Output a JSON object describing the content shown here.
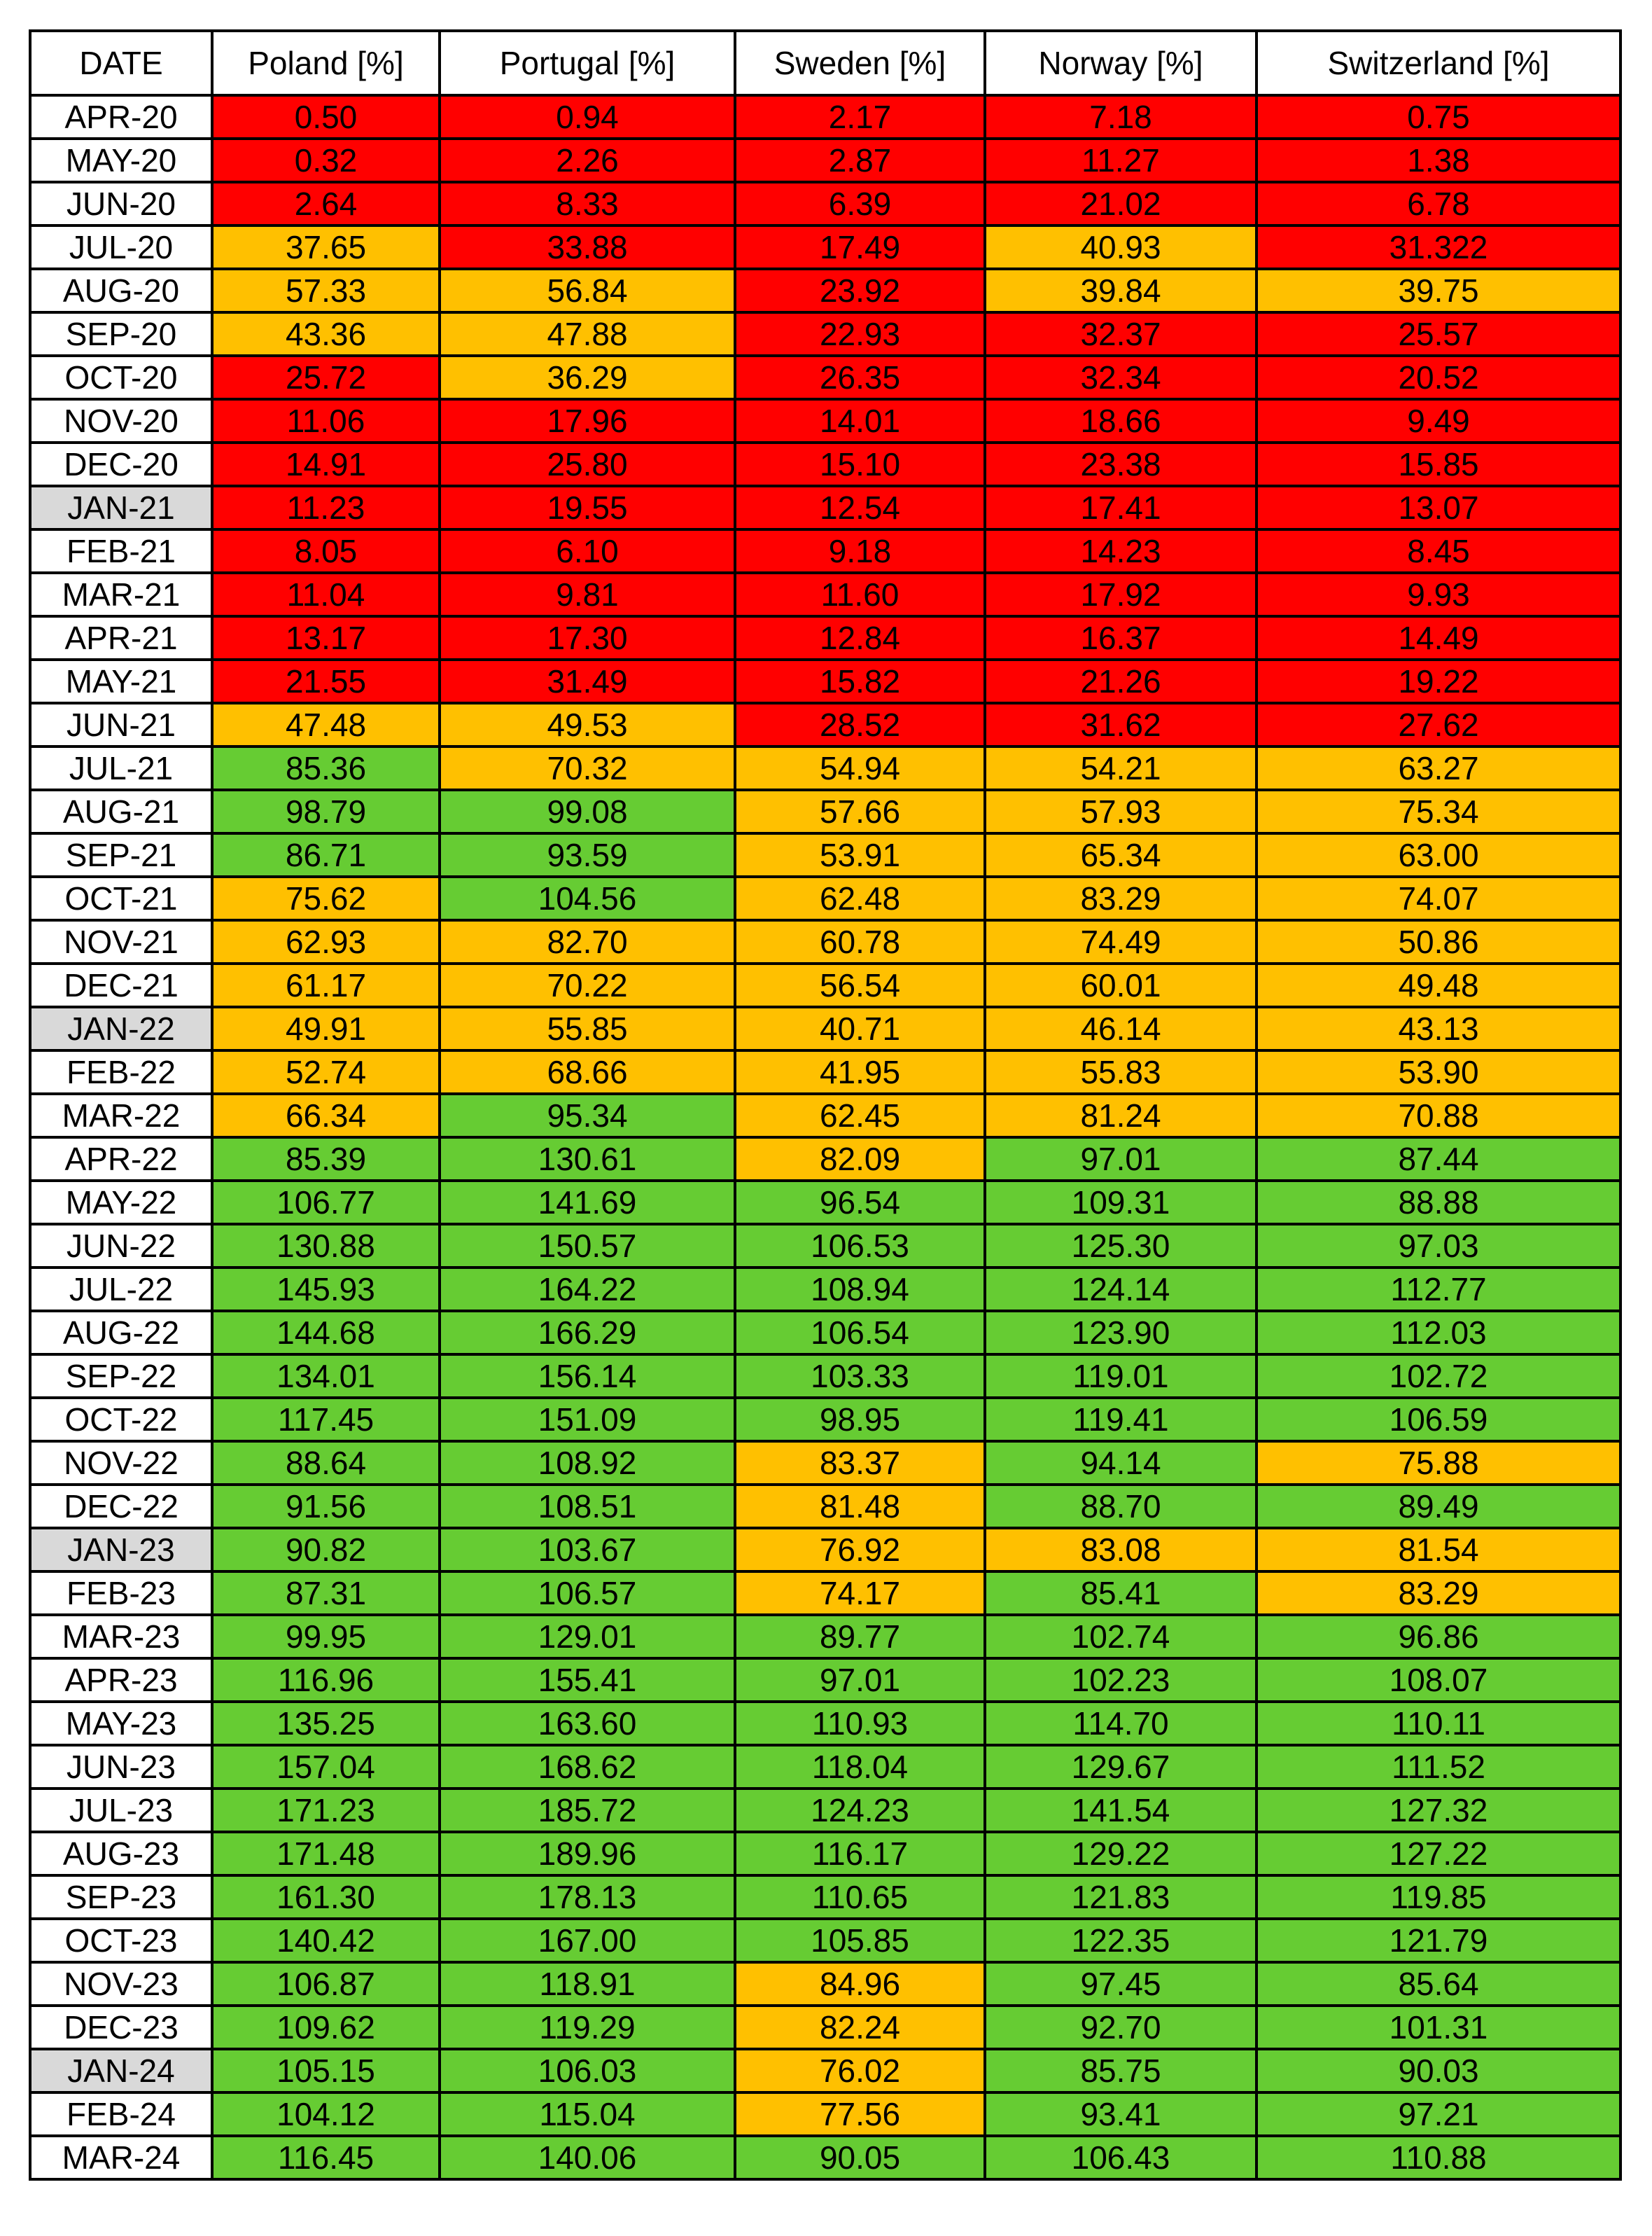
{
  "table": {
    "headers": [
      "DATE",
      "Poland [%]",
      "Portugal [%]",
      "Sweden [%]",
      "Norway [%]",
      "Switzerland [%]"
    ],
    "status_colors": {
      "red": "#ff0000",
      "orange": "#ffc000",
      "green": "#66cc33",
      "january_highlight": "#d9d9d9"
    },
    "rows": [
      {
        "date": "APR-20",
        "values": [
          "0.50",
          "0.94",
          "2.17",
          "7.18",
          "0.75"
        ],
        "status": [
          "red",
          "red",
          "red",
          "red",
          "red"
        ]
      },
      {
        "date": "MAY-20",
        "values": [
          "0.32",
          "2.26",
          "2.87",
          "11.27",
          "1.38"
        ],
        "status": [
          "red",
          "red",
          "red",
          "red",
          "red"
        ]
      },
      {
        "date": "JUN-20",
        "values": [
          "2.64",
          "8.33",
          "6.39",
          "21.02",
          "6.78"
        ],
        "status": [
          "red",
          "red",
          "red",
          "red",
          "red"
        ]
      },
      {
        "date": "JUL-20",
        "values": [
          "37.65",
          "33.88",
          "17.49",
          "40.93",
          "31.322"
        ],
        "status": [
          "orange",
          "red",
          "red",
          "orange",
          "red"
        ]
      },
      {
        "date": "AUG-20",
        "values": [
          "57.33",
          "56.84",
          "23.92",
          "39.84",
          "39.75"
        ],
        "status": [
          "orange",
          "orange",
          "red",
          "orange",
          "orange"
        ]
      },
      {
        "date": "SEP-20",
        "values": [
          "43.36",
          "47.88",
          "22.93",
          "32.37",
          "25.57"
        ],
        "status": [
          "orange",
          "orange",
          "red",
          "red",
          "red"
        ]
      },
      {
        "date": "OCT-20",
        "values": [
          "25.72",
          "36.29",
          "26.35",
          "32.34",
          "20.52"
        ],
        "status": [
          "red",
          "orange",
          "red",
          "red",
          "red"
        ]
      },
      {
        "date": "NOV-20",
        "values": [
          "11.06",
          "17.96",
          "14.01",
          "18.66",
          "9.49"
        ],
        "status": [
          "red",
          "red",
          "red",
          "red",
          "red"
        ]
      },
      {
        "date": "DEC-20",
        "values": [
          "14.91",
          "25.80",
          "15.10",
          "23.38",
          "15.85"
        ],
        "status": [
          "red",
          "red",
          "red",
          "red",
          "red"
        ]
      },
      {
        "date": "JAN-21",
        "values": [
          "11.23",
          "19.55",
          "12.54",
          "17.41",
          "13.07"
        ],
        "status": [
          "red",
          "red",
          "red",
          "red",
          "red"
        ]
      },
      {
        "date": "FEB-21",
        "values": [
          "8.05",
          "6.10",
          "9.18",
          "14.23",
          "8.45"
        ],
        "status": [
          "red",
          "red",
          "red",
          "red",
          "red"
        ]
      },
      {
        "date": "MAR-21",
        "values": [
          "11.04",
          "9.81",
          "11.60",
          "17.92",
          "9.93"
        ],
        "status": [
          "red",
          "red",
          "red",
          "red",
          "red"
        ]
      },
      {
        "date": "APR-21",
        "values": [
          "13.17",
          "17.30",
          "12.84",
          "16.37",
          "14.49"
        ],
        "status": [
          "red",
          "red",
          "red",
          "red",
          "red"
        ]
      },
      {
        "date": "MAY-21",
        "values": [
          "21.55",
          "31.49",
          "15.82",
          "21.26",
          "19.22"
        ],
        "status": [
          "red",
          "red",
          "red",
          "red",
          "red"
        ]
      },
      {
        "date": "JUN-21",
        "values": [
          "47.48",
          "49.53",
          "28.52",
          "31.62",
          "27.62"
        ],
        "status": [
          "orange",
          "orange",
          "red",
          "red",
          "red"
        ]
      },
      {
        "date": "JUL-21",
        "values": [
          "85.36",
          "70.32",
          "54.94",
          "54.21",
          "63.27"
        ],
        "status": [
          "green",
          "orange",
          "orange",
          "orange",
          "orange"
        ]
      },
      {
        "date": "AUG-21",
        "values": [
          "98.79",
          "99.08",
          "57.66",
          "57.93",
          "75.34"
        ],
        "status": [
          "green",
          "green",
          "orange",
          "orange",
          "orange"
        ]
      },
      {
        "date": "SEP-21",
        "values": [
          "86.71",
          "93.59",
          "53.91",
          "65.34",
          "63.00"
        ],
        "status": [
          "green",
          "green",
          "orange",
          "orange",
          "orange"
        ]
      },
      {
        "date": "OCT-21",
        "values": [
          "75.62",
          "104.56",
          "62.48",
          "83.29",
          "74.07"
        ],
        "status": [
          "orange",
          "green",
          "orange",
          "orange",
          "orange"
        ]
      },
      {
        "date": "NOV-21",
        "values": [
          "62.93",
          "82.70",
          "60.78",
          "74.49",
          "50.86"
        ],
        "status": [
          "orange",
          "orange",
          "orange",
          "orange",
          "orange"
        ]
      },
      {
        "date": "DEC-21",
        "values": [
          "61.17",
          "70.22",
          "56.54",
          "60.01",
          "49.48"
        ],
        "status": [
          "orange",
          "orange",
          "orange",
          "orange",
          "orange"
        ]
      },
      {
        "date": "JAN-22",
        "values": [
          "49.91",
          "55.85",
          "40.71",
          "46.14",
          "43.13"
        ],
        "status": [
          "orange",
          "orange",
          "orange",
          "orange",
          "orange"
        ]
      },
      {
        "date": "FEB-22",
        "values": [
          "52.74",
          "68.66",
          "41.95",
          "55.83",
          "53.90"
        ],
        "status": [
          "orange",
          "orange",
          "orange",
          "orange",
          "orange"
        ]
      },
      {
        "date": "MAR-22",
        "values": [
          "66.34",
          "95.34",
          "62.45",
          "81.24",
          "70.88"
        ],
        "status": [
          "orange",
          "green",
          "orange",
          "orange",
          "orange"
        ]
      },
      {
        "date": "APR-22",
        "values": [
          "85.39",
          "130.61",
          "82.09",
          "97.01",
          "87.44"
        ],
        "status": [
          "green",
          "green",
          "orange",
          "green",
          "green"
        ]
      },
      {
        "date": "MAY-22",
        "values": [
          "106.77",
          "141.69",
          "96.54",
          "109.31",
          "88.88"
        ],
        "status": [
          "green",
          "green",
          "green",
          "green",
          "green"
        ]
      },
      {
        "date": "JUN-22",
        "values": [
          "130.88",
          "150.57",
          "106.53",
          "125.30",
          "97.03"
        ],
        "status": [
          "green",
          "green",
          "green",
          "green",
          "green"
        ]
      },
      {
        "date": "JUL-22",
        "values": [
          "145.93",
          "164.22",
          "108.94",
          "124.14",
          "112.77"
        ],
        "status": [
          "green",
          "green",
          "green",
          "green",
          "green"
        ]
      },
      {
        "date": "AUG-22",
        "values": [
          "144.68",
          "166.29",
          "106.54",
          "123.90",
          "112.03"
        ],
        "status": [
          "green",
          "green",
          "green",
          "green",
          "green"
        ]
      },
      {
        "date": "SEP-22",
        "values": [
          "134.01",
          "156.14",
          "103.33",
          "119.01",
          "102.72"
        ],
        "status": [
          "green",
          "green",
          "green",
          "green",
          "green"
        ]
      },
      {
        "date": "OCT-22",
        "values": [
          "117.45",
          "151.09",
          "98.95",
          "119.41",
          "106.59"
        ],
        "status": [
          "green",
          "green",
          "green",
          "green",
          "green"
        ]
      },
      {
        "date": "NOV-22",
        "values": [
          "88.64",
          "108.92",
          "83.37",
          "94.14",
          "75.88"
        ],
        "status": [
          "green",
          "green",
          "orange",
          "green",
          "orange"
        ]
      },
      {
        "date": "DEC-22",
        "values": [
          "91.56",
          "108.51",
          "81.48",
          "88.70",
          "89.49"
        ],
        "status": [
          "green",
          "green",
          "orange",
          "green",
          "green"
        ]
      },
      {
        "date": "JAN-23",
        "values": [
          "90.82",
          "103.67",
          "76.92",
          "83.08",
          "81.54"
        ],
        "status": [
          "green",
          "green",
          "orange",
          "orange",
          "orange"
        ]
      },
      {
        "date": "FEB-23",
        "values": [
          "87.31",
          "106.57",
          "74.17",
          "85.41",
          "83.29"
        ],
        "status": [
          "green",
          "green",
          "orange",
          "green",
          "orange"
        ]
      },
      {
        "date": "MAR-23",
        "values": [
          "99.95",
          "129.01",
          "89.77",
          "102.74",
          "96.86"
        ],
        "status": [
          "green",
          "green",
          "green",
          "green",
          "green"
        ]
      },
      {
        "date": "APR-23",
        "values": [
          "116.96",
          "155.41",
          "97.01",
          "102.23",
          "108.07"
        ],
        "status": [
          "green",
          "green",
          "green",
          "green",
          "green"
        ]
      },
      {
        "date": "MAY-23",
        "values": [
          "135.25",
          "163.60",
          "110.93",
          "114.70",
          "110.11"
        ],
        "status": [
          "green",
          "green",
          "green",
          "green",
          "green"
        ]
      },
      {
        "date": "JUN-23",
        "values": [
          "157.04",
          "168.62",
          "118.04",
          "129.67",
          "111.52"
        ],
        "status": [
          "green",
          "green",
          "green",
          "green",
          "green"
        ]
      },
      {
        "date": "JUL-23",
        "values": [
          "171.23",
          "185.72",
          "124.23",
          "141.54",
          "127.32"
        ],
        "status": [
          "green",
          "green",
          "green",
          "green",
          "green"
        ]
      },
      {
        "date": "AUG-23",
        "values": [
          "171.48",
          "189.96",
          "116.17",
          "129.22",
          "127.22"
        ],
        "status": [
          "green",
          "green",
          "green",
          "green",
          "green"
        ]
      },
      {
        "date": "SEP-23",
        "values": [
          "161.30",
          "178.13",
          "110.65",
          "121.83",
          "119.85"
        ],
        "status": [
          "green",
          "green",
          "green",
          "green",
          "green"
        ]
      },
      {
        "date": "OCT-23",
        "values": [
          "140.42",
          "167.00",
          "105.85",
          "122.35",
          "121.79"
        ],
        "status": [
          "green",
          "green",
          "green",
          "green",
          "green"
        ]
      },
      {
        "date": "NOV-23",
        "values": [
          "106.87",
          "118.91",
          "84.96",
          "97.45",
          "85.64"
        ],
        "status": [
          "green",
          "green",
          "orange",
          "green",
          "green"
        ]
      },
      {
        "date": "DEC-23",
        "values": [
          "109.62",
          "119.29",
          "82.24",
          "92.70",
          "101.31"
        ],
        "status": [
          "green",
          "green",
          "orange",
          "green",
          "green"
        ]
      },
      {
        "date": "JAN-24",
        "values": [
          "105.15",
          "106.03",
          "76.02",
          "85.75",
          "90.03"
        ],
        "status": [
          "green",
          "green",
          "orange",
          "green",
          "green"
        ]
      },
      {
        "date": "FEB-24",
        "values": [
          "104.12",
          "115.04",
          "77.56",
          "93.41",
          "97.21"
        ],
        "status": [
          "green",
          "green",
          "orange",
          "green",
          "green"
        ]
      },
      {
        "date": "MAR-24",
        "values": [
          "116.45",
          "140.06",
          "90.05",
          "106.43",
          "110.88"
        ],
        "status": [
          "green",
          "green",
          "green",
          "green",
          "green"
        ]
      }
    ]
  }
}
